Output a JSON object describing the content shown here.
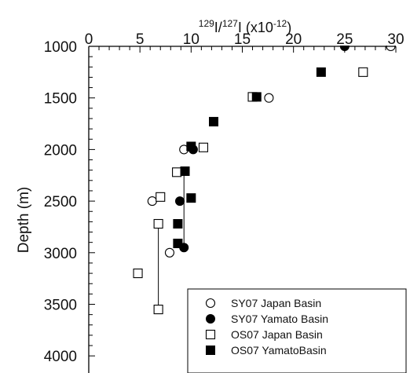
{
  "chart_data": {
    "type": "scatter",
    "title_top": {
      "base1": "I/",
      "base2": "I (x10",
      "close": ")",
      "sup1": "129",
      "sup2": "127",
      "sup3": "-12"
    },
    "ylabel": "Depth (m)",
    "x_axis_position": "top",
    "y_inverted": true,
    "xlim": [
      0,
      30
    ],
    "ylim": [
      1000,
      4000
    ],
    "x_ticks": [
      "0",
      "5",
      "10",
      "15",
      "20",
      "25",
      "30"
    ],
    "y_ticks": [
      "1000",
      "1500",
      "2000",
      "2500",
      "3000",
      "3500",
      "4000"
    ],
    "legend_position": "bottom-right",
    "series": [
      {
        "name": "SY07 Japan Basin",
        "marker": "open-circle",
        "points": [
          [
            29.5,
            1000
          ],
          [
            17.6,
            1500
          ],
          [
            9.3,
            2000
          ],
          [
            6.2,
            2500
          ],
          [
            7.9,
            3000
          ]
        ]
      },
      {
        "name": "SY07 Yamato Basin",
        "marker": "filled-circle",
        "points": [
          [
            25.0,
            1000
          ],
          [
            10.2,
            2000
          ],
          [
            8.9,
            2500
          ],
          [
            9.3,
            2950
          ]
        ]
      },
      {
        "name": "OS07 Japan Basin",
        "marker": "open-square",
        "points": [
          [
            26.8,
            1250
          ],
          [
            16.0,
            1490
          ],
          [
            11.2,
            1980
          ],
          [
            8.6,
            2220
          ],
          [
            7.0,
            2460
          ],
          [
            6.8,
            2720
          ],
          [
            4.8,
            3200
          ],
          [
            6.8,
            3550
          ]
        ]
      },
      {
        "name": "OS07 YamatoBasin",
        "marker": "filled-square",
        "points": [
          [
            22.7,
            1250
          ],
          [
            16.4,
            1490
          ],
          [
            12.2,
            1730
          ],
          [
            10.0,
            1970
          ],
          [
            9.4,
            2210
          ],
          [
            10.0,
            2470
          ],
          [
            8.7,
            2720
          ],
          [
            8.7,
            2910
          ]
        ]
      }
    ],
    "lines": [
      {
        "points": [
          [
            6.8,
            2720
          ],
          [
            6.8,
            3550
          ]
        ]
      },
      {
        "points": [
          [
            9.3,
            2220
          ],
          [
            9.3,
            2950
          ]
        ]
      }
    ]
  }
}
